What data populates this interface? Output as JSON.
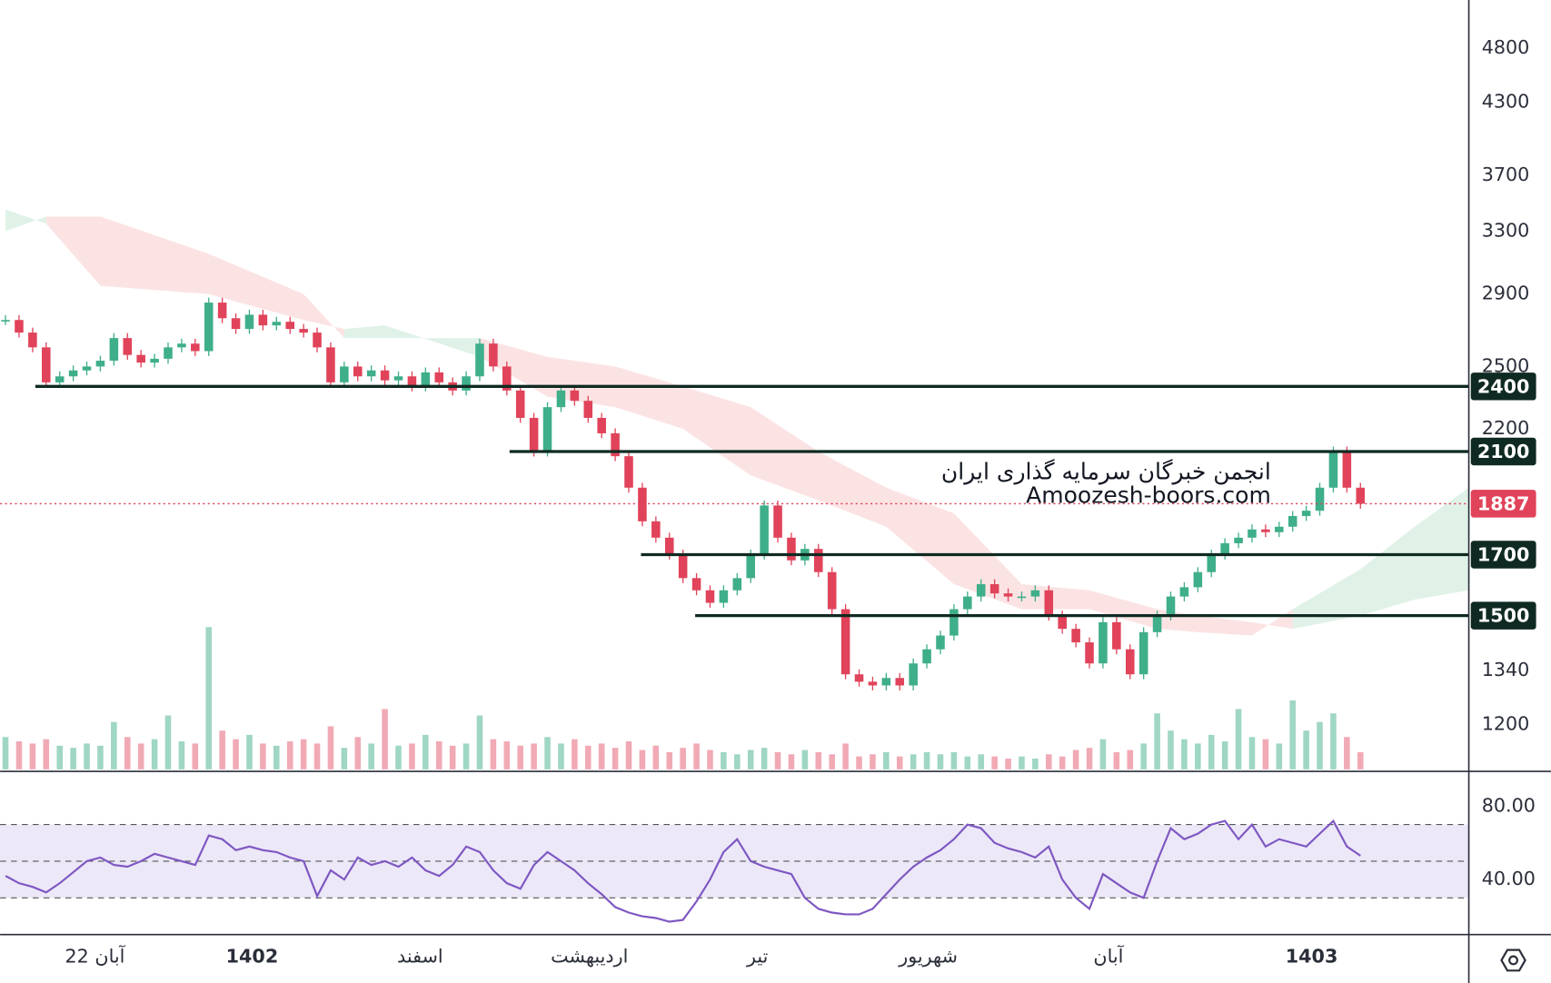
{
  "chart_data": {
    "type": "candlestick",
    "xlim": [
      -0.4,
      108
    ],
    "xticks": [
      {
        "value": 6.6,
        "label": "22 آبان"
      },
      {
        "value": 18.2,
        "label": "1402"
      },
      {
        "value": 30.6,
        "label": "اسفند"
      },
      {
        "value": 43.1,
        "label": "اردیبهشت"
      },
      {
        "value": 55.5,
        "label": "تیر"
      },
      {
        "value": 68.1,
        "label": "شهریور"
      },
      {
        "value": 81.4,
        "label": "آبان"
      },
      {
        "value": 96.4,
        "label": "1403"
      }
    ],
    "ylim": [
      1090,
      5300
    ],
    "log_scale": true,
    "yticks": [
      1200,
      1340,
      2200,
      2500,
      2900,
      3300,
      3700,
      4300,
      4800
    ],
    "up_color": "#3fae8a",
    "down_color": "#e0435a",
    "values": [
      2750,
      2680,
      2600,
      2420,
      2450,
      2480,
      2500,
      2530,
      2650,
      2560,
      2520,
      2540,
      2600,
      2620,
      2580,
      2850,
      2760,
      2700,
      2780,
      2720,
      2740,
      2700,
      2680,
      2600,
      2420,
      2500,
      2450,
      2480,
      2430,
      2450,
      2400,
      2470,
      2420,
      2380,
      2450,
      2620,
      2500,
      2380,
      2250,
      2100,
      2300,
      2380,
      2330,
      2250,
      2180,
      2080,
      1950,
      1820,
      1760,
      1700,
      1620,
      1580,
      1540,
      1580,
      1620,
      1700,
      1880,
      1760,
      1680,
      1720,
      1640,
      1520,
      1330,
      1310,
      1300,
      1320,
      1300,
      1360,
      1400,
      1440,
      1520,
      1560,
      1600,
      1570,
      1560,
      1560,
      1580,
      1500,
      1460,
      1420,
      1360,
      1480,
      1400,
      1330,
      1450,
      1500,
      1560,
      1590,
      1640,
      1700,
      1740,
      1760,
      1790,
      1780,
      1800,
      1840,
      1860,
      1950,
      2100,
      1950,
      1887
    ],
    "level_color": "#0f2a22",
    "levels": [
      {
        "value": 2400,
        "x0": 2.2
      },
      {
        "value": 2100,
        "x0": 37.2
      },
      {
        "value": 1700,
        "x0": 46.9
      },
      {
        "value": 1500,
        "x0": 50.9
      }
    ],
    "cloud": {
      "up_color": "#d6eedf",
      "down_color": "#fbdada",
      "x": [
        0,
        3,
        7,
        15,
        22,
        25,
        28,
        35,
        40,
        45,
        50,
        55,
        60,
        65,
        70,
        75,
        80,
        85,
        88,
        92,
        95,
        100,
        104,
        108
      ],
      "span_a": [
        3450,
        3350,
        2950,
        2900,
        2750,
        2700,
        2720,
        2550,
        2350,
        2300,
        2200,
        2000,
        1900,
        1800,
        1600,
        1520,
        1520,
        1460,
        1450,
        1440,
        1520,
        1650,
        1800,
        1950
      ],
      "span_b": [
        3300,
        3400,
        3400,
        3150,
        2900,
        2650,
        2650,
        2650,
        2550,
        2500,
        2400,
        2300,
        2100,
        1950,
        1850,
        1600,
        1580,
        1520,
        1500,
        1480,
        1460,
        1500,
        1550,
        1580
      ]
    },
    "volume": {
      "vlim": [
        0,
        100
      ],
      "values": [
        15,
        13,
        12,
        14,
        11,
        10,
        12,
        11,
        22,
        15,
        12,
        14,
        25,
        13,
        12,
        66,
        18,
        14,
        16,
        12,
        11,
        13,
        14,
        12,
        20,
        10,
        15,
        12,
        28,
        11,
        12,
        16,
        13,
        11,
        12,
        25,
        14,
        13,
        11,
        12,
        15,
        12,
        14,
        11,
        12,
        10,
        13,
        9,
        11,
        8,
        10,
        12,
        9,
        8,
        7,
        9,
        10,
        8,
        7,
        9,
        8,
        7,
        12,
        6,
        7,
        8,
        6,
        7,
        8,
        7,
        8,
        6,
        7,
        6,
        5,
        6,
        5,
        7,
        6,
        9,
        10,
        14,
        8,
        9,
        12,
        26,
        18,
        14,
        12,
        16,
        13,
        28,
        15,
        14,
        12,
        32,
        18,
        22,
        26,
        15,
        8
      ]
    },
    "rsi": {
      "type": "line",
      "color": "#7e57c2",
      "band_color": "#ece8f8",
      "ylim": [
        10,
        99
      ],
      "yticks": [
        {
          "value": 80,
          "label": "80.00"
        },
        {
          "value": 40,
          "label": "40.00"
        }
      ],
      "levels": [
        30,
        50,
        70
      ],
      "values": [
        42,
        38,
        36,
        33,
        38,
        44,
        50,
        52,
        48,
        47,
        50,
        54,
        52,
        50,
        48,
        64,
        62,
        56,
        58,
        56,
        55,
        52,
        50,
        31,
        45,
        40,
        52,
        48,
        50,
        47,
        52,
        45,
        42,
        48,
        58,
        55,
        45,
        38,
        35,
        48,
        55,
        50,
        45,
        38,
        32,
        25,
        22,
        20,
        19,
        17,
        18,
        28,
        40,
        55,
        62,
        50,
        47,
        45,
        43,
        30,
        24,
        22,
        21,
        21,
        24,
        32,
        40,
        47,
        52,
        56,
        62,
        70,
        68,
        60,
        57,
        55,
        52,
        58,
        40,
        30,
        24,
        43,
        38,
        33,
        30,
        50,
        68,
        62,
        65,
        70,
        72,
        62,
        70,
        58,
        62,
        60,
        58,
        65,
        72,
        58,
        53
      ]
    },
    "annotations": [
      "انجمن خبرگان سرمایه گذاری ایران",
      "Amoozesh-boors.com"
    ]
  }
}
